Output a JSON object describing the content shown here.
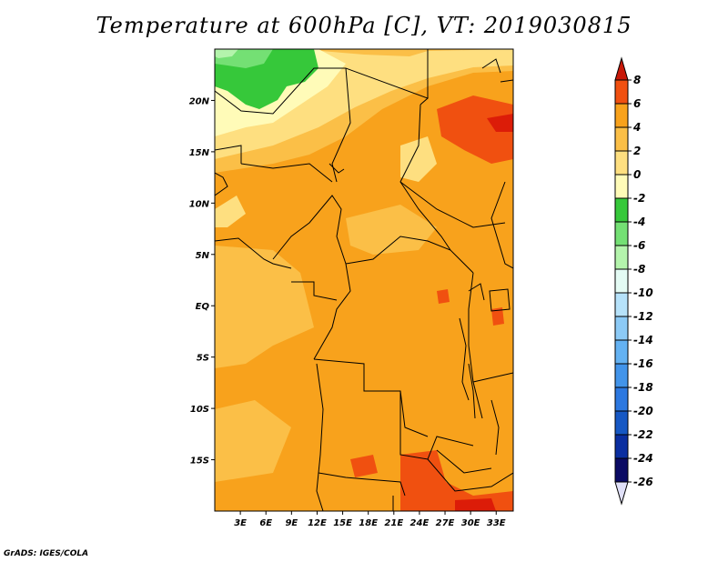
{
  "title": "Temperature at 600hPa [C], VT: 2019030815",
  "credit": "GrADS: IGES/COLA",
  "map": {
    "lon_ticks": [
      "3E",
      "6E",
      "9E",
      "12E",
      "15E",
      "18E",
      "21E",
      "24E",
      "27E",
      "30E",
      "33E"
    ],
    "lat_ticks": [
      "20N",
      "15N",
      "10N",
      "5N",
      "EQ",
      "5S",
      "10S",
      "15S"
    ],
    "lon_range": [
      0,
      35
    ],
    "lat_range": [
      -20,
      25
    ],
    "base_field_color": "#f8a21c"
  },
  "colorbar": {
    "labels": [
      "8",
      "6",
      "4",
      "2",
      "0",
      "-2",
      "-4",
      "-6",
      "-8",
      "-10",
      "-12",
      "-14",
      "-16",
      "-18",
      "-20",
      "-22",
      "-24",
      "-26"
    ],
    "colors": [
      "#d8f0e8",
      "#fefcb4",
      "#fedf7e",
      "#fcc04a",
      "#f8a21c",
      "#f46c0c",
      "#e83c08",
      "#c01808",
      "#000000"
    ],
    "bins_top_to_bottom": [
      "#dc1c08",
      "#f05010",
      "#f8a21c",
      "#fbbf47",
      "#fedf80",
      "#fffbb8",
      "#36c83a",
      "#74e074",
      "#b4f4ac",
      "#e4fbf4",
      "#b6e2fa",
      "#8ccaf6",
      "#64b2f2",
      "#4294ea",
      "#2c78e0",
      "#1658c4",
      "#0a2ea0",
      "#0a0a64"
    ],
    "over_color": "#c81808",
    "under_color": "#e0e0f8"
  }
}
